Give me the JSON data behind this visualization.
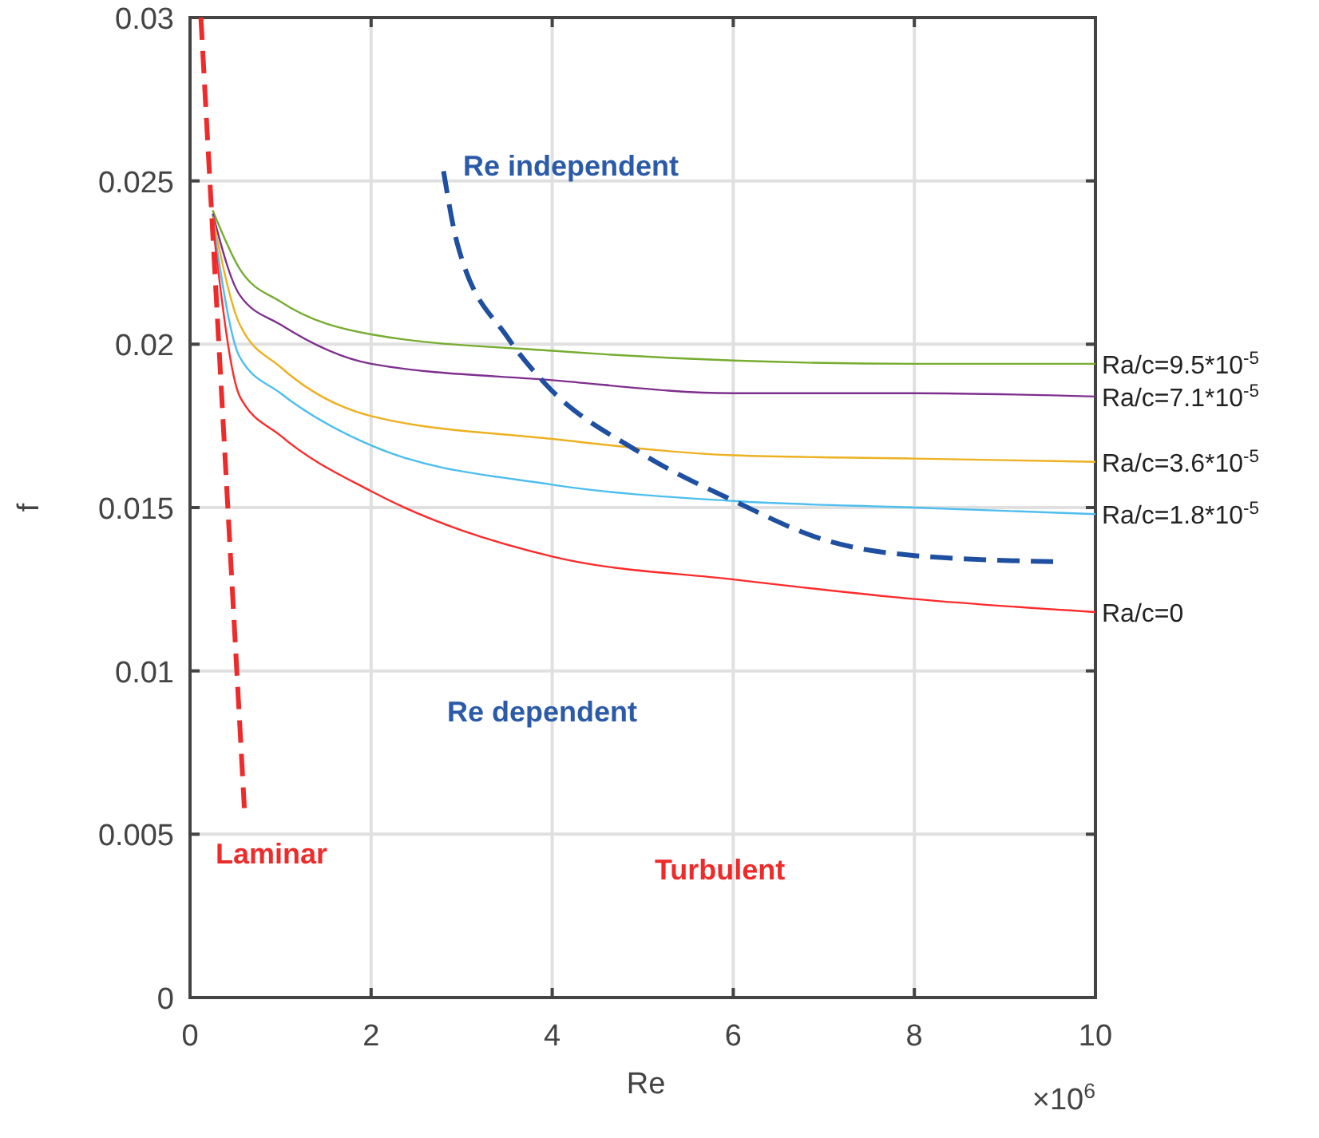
{
  "chart_data": {
    "type": "line",
    "xlabel": "Re",
    "ylabel": "f",
    "xlim": [
      0,
      10
    ],
    "ylim": [
      0,
      0.03
    ],
    "xticks": [
      0,
      2,
      4,
      6,
      8,
      10
    ],
    "yticks": [
      0,
      0.005,
      0.01,
      0.015,
      0.02,
      0.025,
      0.03
    ],
    "grid": true,
    "series": [
      {
        "name": "Ra/c=9.5*10$^{-5}$",
        "color": "#77ac30",
        "x": [
          0.25,
          0.55,
          1,
          2,
          4,
          6,
          8,
          10
        ],
        "values": [
          0.0241,
          0.0223,
          0.0213,
          0.0203,
          0.0198,
          0.0195,
          0.0194,
          0.0194
        ]
      },
      {
        "name": "Ra/c=7.1*10$^{-5}$",
        "color": "#7e2f8e",
        "x": [
          0.25,
          0.55,
          1,
          2,
          4,
          6,
          8,
          10
        ],
        "values": [
          0.024,
          0.0215,
          0.0206,
          0.0194,
          0.0189,
          0.0185,
          0.0185,
          0.0184
        ]
      },
      {
        "name": "Ra/c=3.6*10$^{-5}$",
        "color": "#edb120",
        "x": [
          0.25,
          0.55,
          1,
          2,
          4,
          6,
          8,
          10
        ],
        "values": [
          0.0239,
          0.0206,
          0.0193,
          0.0178,
          0.0171,
          0.0166,
          0.0165,
          0.0164
        ]
      },
      {
        "name": "Ra/c=1.8*10$^{-5}$",
        "color": "#4dbeee",
        "x": [
          0.25,
          0.55,
          1,
          2,
          4,
          6,
          8,
          10
        ],
        "values": [
          0.0238,
          0.0196,
          0.0185,
          0.0169,
          0.0157,
          0.0152,
          0.015,
          0.0148
        ]
      },
      {
        "name": "Ra/c=0",
        "color": "#ff2a2a",
        "x": [
          0.25,
          0.55,
          1,
          2,
          4,
          6,
          8,
          10
        ],
        "values": [
          0.0237,
          0.0184,
          0.0172,
          0.0155,
          0.0135,
          0.0128,
          0.0122,
          0.0118
        ]
      },
      {
        "color": "#ee2a2a",
        "line_style": "dashed",
        "x": [
          0.12,
          0.6
        ],
        "values": [
          0.03,
          0.0058
        ]
      },
      {
        "color": "#1f4fa0",
        "line_style": "dashed",
        "x": [
          2.8,
          2.95,
          3.51,
          3.92,
          4.96,
          6.01,
          7.02,
          8.0,
          9.6
        ],
        "values": [
          0.0253,
          0.0231,
          0.0202,
          0.0188,
          0.0167,
          0.0152,
          0.014,
          0.01353,
          0.01334
        ]
      }
    ],
    "annotations": [
      "Re independent",
      "Re dependent",
      "Laminar",
      "Turbulent",
      "×10$^{6}$"
    ]
  }
}
